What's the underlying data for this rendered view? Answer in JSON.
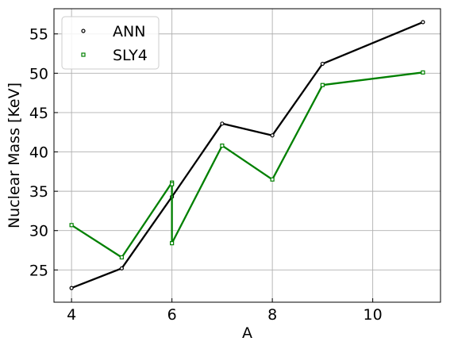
{
  "chart_data": {
    "type": "line",
    "xlabel": "A",
    "ylabel": "Nuclear Mass [KeV]",
    "xlim": [
      3.65,
      11.35
    ],
    "ylim": [
      20.9,
      58.2
    ],
    "xticks": [
      "4",
      "6",
      "8",
      "10"
    ],
    "yticks": [
      "25",
      "30",
      "35",
      "40",
      "45",
      "50",
      "55"
    ],
    "grid": true,
    "legend_position": "top-left",
    "series": [
      {
        "name": "ANN",
        "color": "#000000",
        "marker": "circle",
        "x": [
          4,
          5,
          6,
          7,
          8,
          9,
          11
        ],
        "y": [
          22.7,
          25.2,
          34.3,
          43.6,
          42.1,
          51.2,
          56.5
        ]
      },
      {
        "name": "SLY4",
        "color": "#008000",
        "marker": "square",
        "x": [
          4,
          5,
          6,
          6,
          6,
          7,
          8,
          9,
          11
        ],
        "y": [
          30.7,
          26.6,
          36.1,
          35.9,
          28.4,
          40.8,
          36.5,
          48.5,
          50.1
        ]
      }
    ]
  }
}
